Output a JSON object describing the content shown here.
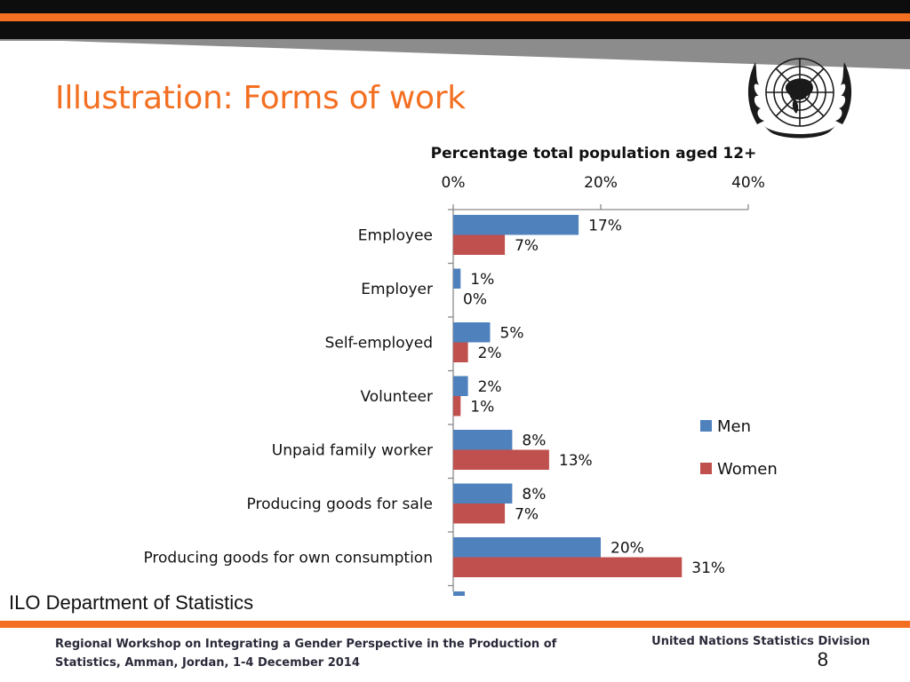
{
  "slide": {
    "title": "Illustration: Forms of work",
    "source": "ILO Department of Statistics",
    "footer_left": "Regional Workshop on Integrating a Gender Perspective in the Production of Statistics, Amman, Jordan, 1-4 December 2014",
    "footer_right": "United Nations Statistics Division",
    "page_number": "8",
    "colors": {
      "accent": "#f36f21",
      "header_black": "#0d0d0d",
      "men": "#4f81bd",
      "women": "#c0504d"
    }
  },
  "chart_data": {
    "type": "bar",
    "orientation": "horizontal",
    "title": "Percentage total population aged 12+",
    "categories": [
      "Employee",
      "Employer",
      "Self-employed",
      "Volunteer",
      "Unpaid family worker",
      "Producing goods for sale",
      "Producing goods for own consumption"
    ],
    "series": [
      {
        "name": "Men",
        "values": [
          17,
          1,
          5,
          2,
          8,
          8,
          20
        ],
        "labels": [
          "17%",
          "1%",
          "5%",
          "2%",
          "8%",
          "8%",
          "20%"
        ],
        "color": "#4f81bd"
      },
      {
        "name": "Women",
        "values": [
          7,
          0,
          2,
          1,
          13,
          7,
          31
        ],
        "labels": [
          "7%",
          "0%",
          "2%",
          "1%",
          "13%",
          "7%",
          "31%"
        ],
        "color": "#c0504d"
      }
    ],
    "xlim": [
      0,
      40
    ],
    "x_ticks": [
      0,
      20,
      40
    ],
    "x_tick_labels": [
      "0%",
      "20%",
      "40%"
    ],
    "axis_position": "top",
    "grid": false,
    "legend_position": "right"
  }
}
